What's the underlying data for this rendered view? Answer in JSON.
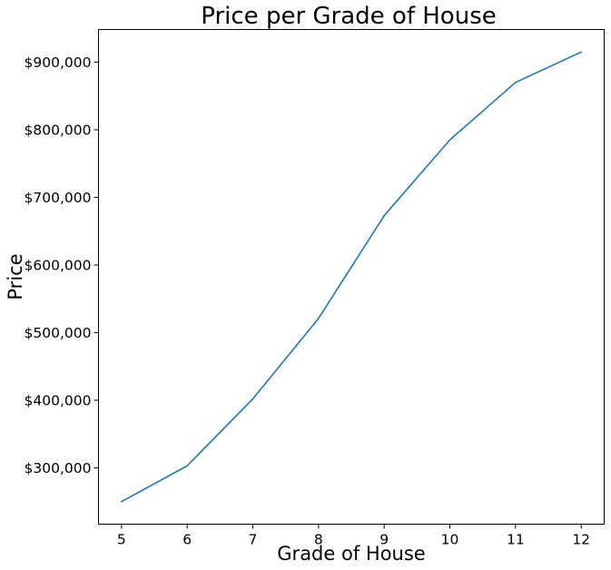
{
  "chart_data": {
    "type": "line",
    "title": "Price per Grade of House",
    "xlabel": "Grade of House",
    "ylabel": "Price",
    "x": [
      5,
      6,
      7,
      8,
      9,
      10,
      11,
      12
    ],
    "series": [
      {
        "values": [
          250000,
          303000,
          402000,
          521000,
          673000,
          785000,
          870000,
          915000
        ],
        "color": "#1f77b4"
      }
    ],
    "xticks": [
      5,
      6,
      7,
      8,
      9,
      10,
      11,
      12
    ],
    "xtick_labels": [
      "5",
      "6",
      "7",
      "8",
      "9",
      "10",
      "11",
      "12"
    ],
    "yticks": [
      300000,
      400000,
      500000,
      600000,
      700000,
      800000,
      900000
    ],
    "ytick_labels": [
      "$300,000",
      "$400,000",
      "$500,000",
      "$600,000",
      "$700,000",
      "$800,000",
      "$900,000"
    ],
    "xlim": [
      4.65,
      12.35
    ],
    "ylim": [
      216750,
      948250
    ],
    "grid": false,
    "legend": false
  }
}
